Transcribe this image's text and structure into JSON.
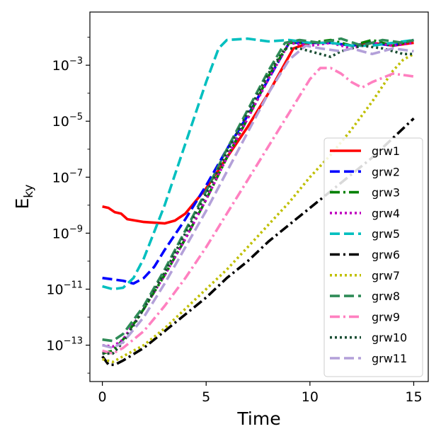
{
  "chart_data": {
    "type": "line",
    "title": "",
    "xlabel": "Time",
    "ylabel_base": "E",
    "ylabel_sub": "ky",
    "yscale": "log",
    "xlim": [
      -0.6,
      15.7
    ],
    "ylim_exp": [
      -14.3,
      -1.1
    ],
    "x_ticks": [
      0,
      5,
      10,
      15
    ],
    "x_tick_labels": [
      "0",
      "5",
      "10",
      "15"
    ],
    "y_ticks_exp": [
      -13,
      -11,
      -9,
      -7,
      -5,
      -3
    ],
    "y_tick_labels": [
      {
        "base": "10",
        "exp": "−13"
      },
      {
        "base": "10",
        "exp": "−11"
      },
      {
        "base": "10",
        "exp": "−9"
      },
      {
        "base": "10",
        "exp": "−7"
      },
      {
        "base": "10",
        "exp": "−5"
      },
      {
        "base": "10",
        "exp": "−3"
      }
    ],
    "legend_position": "lower-right",
    "series": [
      {
        "name": "grw1",
        "color": "#ff0000",
        "dash": "solid",
        "points": [
          [
            0,
            -8.05
          ],
          [
            0.3,
            -8.1
          ],
          [
            0.6,
            -8.25
          ],
          [
            0.9,
            -8.3
          ],
          [
            1.2,
            -8.5
          ],
          [
            2,
            -8.6
          ],
          [
            3,
            -8.65
          ],
          [
            3.5,
            -8.55
          ],
          [
            4,
            -8.3
          ],
          [
            5,
            -7.4
          ],
          [
            6,
            -6.3
          ],
          [
            7,
            -5.2
          ],
          [
            8,
            -4.0
          ],
          [
            8.6,
            -3.2
          ],
          [
            9.2,
            -2.4
          ],
          [
            10,
            -2.2
          ],
          [
            11,
            -2.2
          ],
          [
            12,
            -2.3
          ],
          [
            13,
            -2.2
          ],
          [
            14,
            -2.3
          ],
          [
            15,
            -2.2
          ]
        ]
      },
      {
        "name": "grw2",
        "color": "#0000ff",
        "dash": "dashed",
        "points": [
          [
            0,
            -10.6
          ],
          [
            0.5,
            -10.65
          ],
          [
            1,
            -10.7
          ],
          [
            1.5,
            -10.8
          ],
          [
            2,
            -10.6
          ],
          [
            2.5,
            -10.2
          ],
          [
            3,
            -9.6
          ],
          [
            4,
            -8.5
          ],
          [
            5,
            -7.3
          ],
          [
            6,
            -6.0
          ],
          [
            7,
            -4.8
          ],
          [
            8,
            -3.5
          ],
          [
            9,
            -2.2
          ],
          [
            10,
            -2.2
          ],
          [
            11,
            -2.2
          ],
          [
            12,
            -2.3
          ],
          [
            13,
            -2.2
          ],
          [
            14,
            -2.3
          ],
          [
            15,
            -2.1
          ]
        ]
      },
      {
        "name": "grw3",
        "color": "#008000",
        "dash": "dashdot",
        "points": [
          [
            0,
            -13.3
          ],
          [
            0.5,
            -13.2
          ],
          [
            1,
            -12.8
          ],
          [
            2,
            -11.7
          ],
          [
            3,
            -10.5
          ],
          [
            4,
            -9.2
          ],
          [
            5,
            -7.8
          ],
          [
            6,
            -6.3
          ],
          [
            7,
            -4.9
          ],
          [
            8,
            -3.4
          ],
          [
            9,
            -2.2
          ],
          [
            10,
            -2.2
          ],
          [
            11,
            -2.1
          ],
          [
            12,
            -2.3
          ],
          [
            13,
            -2.1
          ],
          [
            14,
            -2.3
          ],
          [
            15,
            -2.1
          ]
        ]
      },
      {
        "name": "grw4",
        "color": "#bf00bf",
        "dash": "dotted",
        "points": [
          [
            0,
            -13.0
          ],
          [
            0.5,
            -13.05
          ],
          [
            1,
            -12.8
          ],
          [
            2,
            -11.7
          ],
          [
            3,
            -10.5
          ],
          [
            4,
            -9.2
          ],
          [
            5,
            -7.8
          ],
          [
            6,
            -6.3
          ],
          [
            7,
            -4.9
          ],
          [
            8,
            -3.5
          ],
          [
            9,
            -2.2
          ],
          [
            10,
            -2.3
          ],
          [
            11,
            -2.2
          ],
          [
            12,
            -2.4
          ],
          [
            13,
            -2.2
          ],
          [
            14,
            -2.3
          ],
          [
            15,
            -2.2
          ]
        ]
      },
      {
        "name": "grw5",
        "color": "#00bfbf",
        "dash": "dashed",
        "points": [
          [
            0,
            -10.9
          ],
          [
            0.5,
            -11.0
          ],
          [
            1,
            -10.95
          ],
          [
            1.5,
            -10.6
          ],
          [
            2,
            -9.9
          ],
          [
            3,
            -8.0
          ],
          [
            4,
            -5.8
          ],
          [
            5,
            -3.6
          ],
          [
            5.6,
            -2.4
          ],
          [
            6,
            -2.1
          ],
          [
            7,
            -2.05
          ],
          [
            8,
            -2.15
          ],
          [
            9,
            -2.1
          ],
          [
            10,
            -2.2
          ],
          [
            11,
            -2.2
          ],
          [
            12,
            -2.3
          ],
          [
            13,
            -2.3
          ],
          [
            14,
            -2.2
          ],
          [
            15,
            -2.1
          ]
        ]
      },
      {
        "name": "grw6",
        "color": "#000000",
        "dash": "dashdot",
        "points": [
          [
            0,
            -13.4
          ],
          [
            0.3,
            -13.7
          ],
          [
            0.6,
            -13.7
          ],
          [
            1,
            -13.55
          ],
          [
            2,
            -13.1
          ],
          [
            3,
            -12.5
          ],
          [
            4,
            -11.9
          ],
          [
            5,
            -11.3
          ],
          [
            6,
            -10.6
          ],
          [
            7,
            -10.0
          ],
          [
            8,
            -9.3
          ],
          [
            9,
            -8.7
          ],
          [
            10,
            -8.1
          ],
          [
            11,
            -7.5
          ],
          [
            12,
            -6.9
          ],
          [
            13,
            -6.3
          ],
          [
            14,
            -5.6
          ],
          [
            15,
            -4.9
          ]
        ]
      },
      {
        "name": "grw7",
        "color": "#bfbf00",
        "dash": "dotted",
        "points": [
          [
            0,
            -13.5
          ],
          [
            0.5,
            -13.6
          ],
          [
            1,
            -13.4
          ],
          [
            2,
            -13.0
          ],
          [
            3,
            -12.4
          ],
          [
            4,
            -11.7
          ],
          [
            5,
            -11.0
          ],
          [
            6,
            -10.3
          ],
          [
            7,
            -9.5
          ],
          [
            8,
            -8.7
          ],
          [
            9,
            -7.9
          ],
          [
            10,
            -7.0
          ],
          [
            11,
            -6.2
          ],
          [
            12,
            -5.3
          ],
          [
            13,
            -4.3
          ],
          [
            14,
            -3.2
          ],
          [
            14.5,
            -2.8
          ],
          [
            15,
            -2.6
          ]
        ]
      },
      {
        "name": "grw8",
        "color": "#2e8b57",
        "dash": "dashed",
        "points": [
          [
            0,
            -12.8
          ],
          [
            0.5,
            -12.85
          ],
          [
            1,
            -12.6
          ],
          [
            2,
            -11.6
          ],
          [
            3,
            -10.3
          ],
          [
            4,
            -8.9
          ],
          [
            5,
            -7.5
          ],
          [
            6,
            -6.0
          ],
          [
            7,
            -4.6
          ],
          [
            8,
            -3.2
          ],
          [
            8.8,
            -2.2
          ],
          [
            9.5,
            -2.1
          ],
          [
            10.5,
            -2.2
          ],
          [
            11.5,
            -2.05
          ],
          [
            12.5,
            -2.3
          ],
          [
            13.5,
            -2.1
          ],
          [
            14.5,
            -2.2
          ],
          [
            15,
            -2.1
          ]
        ]
      },
      {
        "name": "grw9",
        "color": "#ff80c0",
        "dash": "dashdot",
        "points": [
          [
            0,
            -13.2
          ],
          [
            0.5,
            -13.3
          ],
          [
            1,
            -13.1
          ],
          [
            2,
            -12.5
          ],
          [
            3,
            -11.6
          ],
          [
            4,
            -10.6
          ],
          [
            5,
            -9.5
          ],
          [
            6,
            -8.3
          ],
          [
            7,
            -7.1
          ],
          [
            8,
            -5.9
          ],
          [
            9,
            -4.7
          ],
          [
            10,
            -3.5
          ],
          [
            10.5,
            -3.1
          ],
          [
            11,
            -3.1
          ],
          [
            11.5,
            -3.3
          ],
          [
            12,
            -3.6
          ],
          [
            12.5,
            -3.8
          ],
          [
            13,
            -3.6
          ],
          [
            14,
            -3.3
          ],
          [
            15,
            -3.4
          ]
        ]
      },
      {
        "name": "grw10",
        "color": "#1a4d33",
        "dash": "dotted",
        "points": [
          [
            0,
            -13.3
          ],
          [
            0.5,
            -13.3
          ],
          [
            1,
            -12.9
          ],
          [
            2,
            -11.7
          ],
          [
            3,
            -10.4
          ],
          [
            4,
            -9.0
          ],
          [
            5,
            -7.6
          ],
          [
            6,
            -6.1
          ],
          [
            7,
            -4.7
          ],
          [
            8,
            -3.3
          ],
          [
            8.8,
            -2.4
          ],
          [
            9.5,
            -2.4
          ],
          [
            10.5,
            -2.6
          ],
          [
            11,
            -2.7
          ],
          [
            11.5,
            -2.5
          ],
          [
            12.5,
            -2.3
          ],
          [
            13.5,
            -2.4
          ],
          [
            14.5,
            -2.6
          ],
          [
            15,
            -2.6
          ]
        ]
      },
      {
        "name": "grw11",
        "color": "#b3a0d9",
        "dash": "dashed",
        "points": [
          [
            0,
            -13.0
          ],
          [
            0.5,
            -13.1
          ],
          [
            1,
            -12.9
          ],
          [
            2,
            -12.0
          ],
          [
            3,
            -10.8
          ],
          [
            4,
            -9.5
          ],
          [
            5,
            -8.2
          ],
          [
            6,
            -6.8
          ],
          [
            7,
            -5.4
          ],
          [
            8,
            -4.0
          ],
          [
            9,
            -2.8
          ],
          [
            9.8,
            -2.3
          ],
          [
            10.5,
            -2.4
          ],
          [
            11.5,
            -2.5
          ],
          [
            12,
            -2.4
          ],
          [
            13,
            -2.6
          ],
          [
            14,
            -2.4
          ],
          [
            15,
            -2.5
          ]
        ]
      }
    ]
  }
}
